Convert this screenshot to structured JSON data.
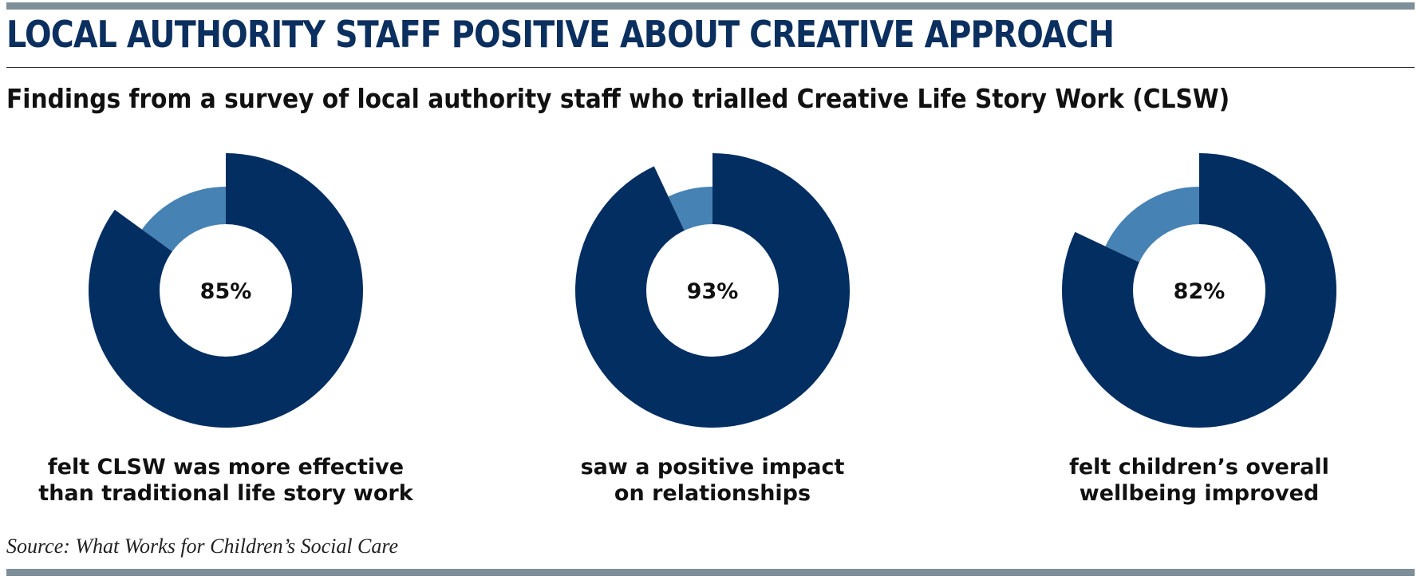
{
  "title": "LOCAL AUTHORITY STAFF POSITIVE ABOUT CREATIVE APPROACH",
  "subtitle": "Findings from a survey of local authority staff who trialled Creative Life Story Work (CLSW)",
  "source": "Source: What Works for Children’s Social Care",
  "colors": {
    "title": "#0b2f5e",
    "primary": "#032e61",
    "secondary": "#4682b4",
    "rule": "#7e8f99"
  },
  "chart_data": [
    {
      "type": "pie",
      "value_percent": 85,
      "center_label": "85%",
      "caption": [
        "felt CLSW was more effective",
        "than traditional life story work"
      ]
    },
    {
      "type": "pie",
      "value_percent": 93,
      "center_label": "93%",
      "caption": [
        "saw a positive impact",
        "on relationships"
      ]
    },
    {
      "type": "pie",
      "value_percent": 82,
      "center_label": "82%",
      "caption": [
        "felt children’s overall",
        "wellbeing improved"
      ]
    }
  ]
}
